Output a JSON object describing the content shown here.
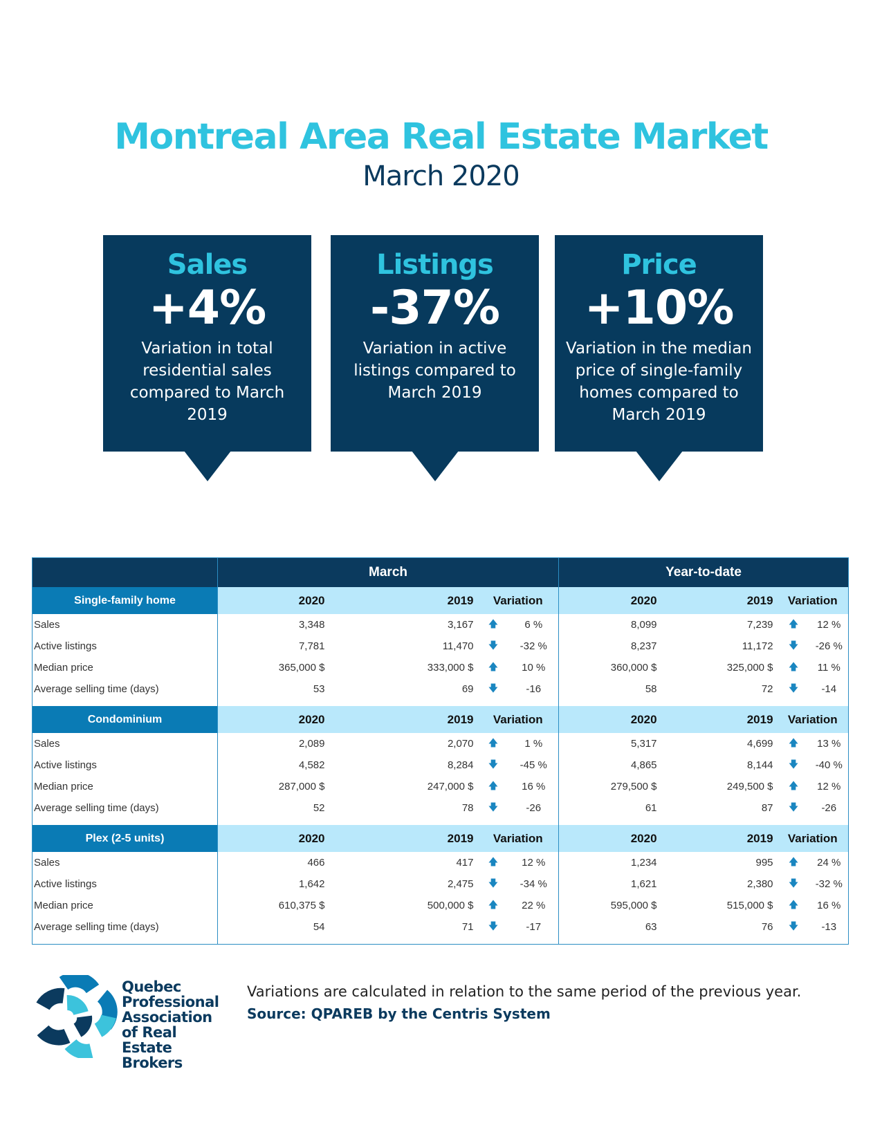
{
  "header": {
    "title": "Montreal Area Real Estate Market",
    "subtitle": "March 2020"
  },
  "highlights": [
    {
      "title": "Sales",
      "value": "+4%",
      "description": "Variation in total residential sales compared to March 2019"
    },
    {
      "title": "Listings",
      "value": "-37%",
      "description": "Variation in active listings compared to March 2019"
    },
    {
      "title": "Price",
      "value": "+10%",
      "description": "Variation in the median price of single-family homes compared to March 2019"
    }
  ],
  "table": {
    "period_headers": [
      "March",
      "Year-to-date"
    ],
    "col_headers": [
      "2020",
      "2019",
      "Variation"
    ],
    "sections": [
      {
        "name": "Single-family home",
        "rows": [
          {
            "label": "Sales",
            "m2020": "3,348",
            "m2019": "3,167",
            "mdir": "up",
            "mvar": "6 %",
            "y2020": "8,099",
            "y2019": "7,239",
            "ydir": "up",
            "yvar": "12 %"
          },
          {
            "label": "Active listings",
            "m2020": "7,781",
            "m2019": "11,470",
            "mdir": "down",
            "mvar": "-32 %",
            "y2020": "8,237",
            "y2019": "11,172",
            "ydir": "down",
            "yvar": "-26 %"
          },
          {
            "label": "Median price",
            "m2020": "365,000 $",
            "m2019": "333,000 $",
            "mdir": "up",
            "mvar": "10 %",
            "y2020": "360,000 $",
            "y2019": "325,000 $",
            "ydir": "up",
            "yvar": "11 %"
          },
          {
            "label": "Average selling time (days)",
            "m2020": "53",
            "m2019": "69",
            "mdir": "down",
            "mvar": "-16",
            "y2020": "58",
            "y2019": "72",
            "ydir": "down",
            "yvar": "-14"
          }
        ]
      },
      {
        "name": "Condominium",
        "rows": [
          {
            "label": "Sales",
            "m2020": "2,089",
            "m2019": "2,070",
            "mdir": "up",
            "mvar": "1 %",
            "y2020": "5,317",
            "y2019": "4,699",
            "ydir": "up",
            "yvar": "13 %"
          },
          {
            "label": "Active listings",
            "m2020": "4,582",
            "m2019": "8,284",
            "mdir": "down",
            "mvar": "-45 %",
            "y2020": "4,865",
            "y2019": "8,144",
            "ydir": "down",
            "yvar": "-40 %"
          },
          {
            "label": "Median price",
            "m2020": "287,000 $",
            "m2019": "247,000 $",
            "mdir": "up",
            "mvar": "16 %",
            "y2020": "279,500 $",
            "y2019": "249,500 $",
            "ydir": "up",
            "yvar": "12 %"
          },
          {
            "label": "Average selling time (days)",
            "m2020": "52",
            "m2019": "78",
            "mdir": "down",
            "mvar": "-26",
            "y2020": "61",
            "y2019": "87",
            "ydir": "down",
            "yvar": "-26"
          }
        ]
      },
      {
        "name": "Plex (2-5 units)",
        "rows": [
          {
            "label": "Sales",
            "m2020": "466",
            "m2019": "417",
            "mdir": "up",
            "mvar": "12 %",
            "y2020": "1,234",
            "y2019": "995",
            "ydir": "up",
            "yvar": "24 %"
          },
          {
            "label": "Active listings",
            "m2020": "1,642",
            "m2019": "2,475",
            "mdir": "down",
            "mvar": "-34 %",
            "y2020": "1,621",
            "y2019": "2,380",
            "ydir": "down",
            "yvar": "-32 %"
          },
          {
            "label": "Median price",
            "m2020": "610,375 $",
            "m2019": "500,000 $",
            "mdir": "up",
            "mvar": "22 %",
            "y2020": "595,000 $",
            "y2019": "515,000 $",
            "ydir": "up",
            "yvar": "16 %"
          },
          {
            "label": "Average selling time (days)",
            "m2020": "54",
            "m2019": "71",
            "mdir": "down",
            "mvar": "-17",
            "y2020": "63",
            "y2019": "76",
            "ydir": "down",
            "yvar": "-13"
          }
        ]
      }
    ]
  },
  "footer": {
    "note": "Variations are calculated in relation to the same period of the previous year.",
    "source": "Source: QPAREB by the Centris System"
  },
  "logo": {
    "text": "Quebec Professional Association of Real Estate Brokers"
  },
  "colors": {
    "title": "#2fc3df",
    "navy": "#0b3a5e",
    "section": "#0a7bb5",
    "light": "#b9e8fb",
    "arrow": "#1a86c0"
  }
}
